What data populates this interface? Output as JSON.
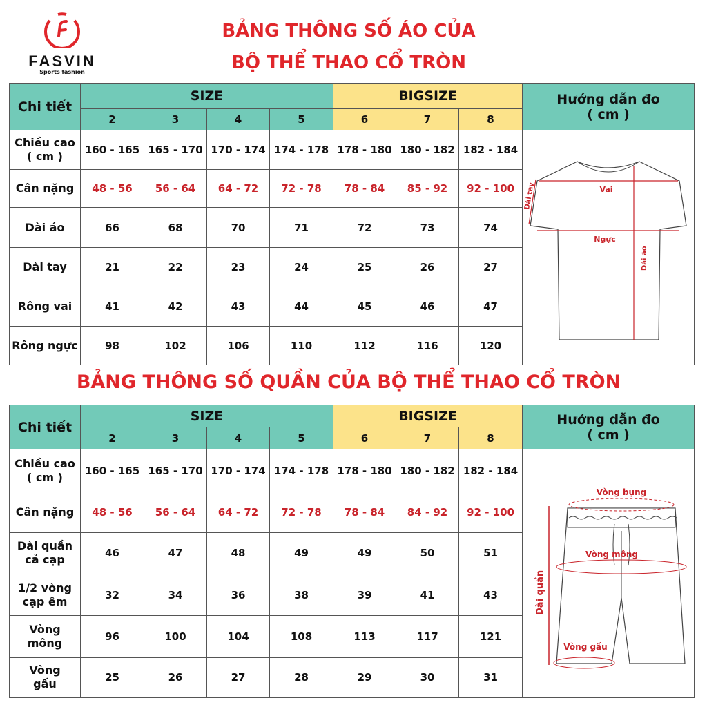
{
  "brand": {
    "name": "FASVIN",
    "tagline": "Sports fashion",
    "color": "#e0262b"
  },
  "shirt_title": [
    "BẢNG THÔNG SỐ ÁO CỦA",
    "BỘ THỂ THAO CỔ TRÒN"
  ],
  "pants_title": "BẢNG THÔNG SỐ QUẦN CỦA BỘ THỂ THAO CỔ TRÒN",
  "colors": {
    "size_header": "#72cab8",
    "bigsize_header": "#fce38a",
    "title": "#e0262b"
  },
  "shirt_table": {
    "detail_header": "Chi tiết",
    "size_header": "SIZE",
    "bigsize_header": "BIGSIZE",
    "guide_header": [
      "Hướng dẫn đo",
      "( cm )"
    ],
    "sizes": [
      "2",
      "3",
      "4",
      "5",
      "6",
      "7",
      "8"
    ],
    "rows": [
      {
        "label": [
          "Chiều cao",
          "( cm )"
        ],
        "values": [
          "160 - 165",
          "165 - 170",
          "170 - 174",
          "174 - 178",
          "178 - 180",
          "180 - 182",
          "182 - 184"
        ]
      },
      {
        "label": [
          "Cân nặng"
        ],
        "values": [
          "48 - 56",
          "56 - 64",
          "64 - 72",
          "72 - 78",
          "78 - 84",
          "85 - 92",
          "92 - 100"
        ]
      },
      {
        "label": [
          "Dài áo"
        ],
        "values": [
          "66",
          "68",
          "70",
          "71",
          "72",
          "73",
          "74"
        ]
      },
      {
        "label": [
          "Dài tay"
        ],
        "values": [
          "21",
          "22",
          "23",
          "24",
          "25",
          "26",
          "27"
        ]
      },
      {
        "label": [
          "Rông vai"
        ],
        "values": [
          "41",
          "42",
          "43",
          "44",
          "45",
          "46",
          "47"
        ]
      },
      {
        "label": [
          "Rông ngực"
        ],
        "values": [
          "98",
          "102",
          "106",
          "110",
          "112",
          "116",
          "120"
        ]
      }
    ],
    "diagram_labels": {
      "shoulder": "Vai",
      "chest": "Ngực",
      "sleeve": "Dài tay",
      "length": "Dài áo"
    }
  },
  "pants_table": {
    "detail_header": "Chi tiết",
    "size_header": "SIZE",
    "bigsize_header": "BIGSIZE",
    "guide_header": [
      "Hướng dẫn đo",
      "( cm )"
    ],
    "sizes": [
      "2",
      "3",
      "4",
      "5",
      "6",
      "7",
      "8"
    ],
    "rows": [
      {
        "label": [
          "Chiều cao",
          "( cm )"
        ],
        "values": [
          "160 - 165",
          "165 - 170",
          "170 - 174",
          "174 - 178",
          "178 - 180",
          "180 - 182",
          "182 - 184"
        ]
      },
      {
        "label": [
          "Cân nặng"
        ],
        "values": [
          "48 - 56",
          "56 - 64",
          "64 - 72",
          "72 - 78",
          "78 - 84",
          "84 - 92",
          "92 - 100"
        ]
      },
      {
        "label": [
          "Dài quần",
          "cả cạp"
        ],
        "values": [
          "46",
          "47",
          "48",
          "49",
          "49",
          "50",
          "51"
        ]
      },
      {
        "label": [
          "1/2 vòng",
          "cạp êm"
        ],
        "values": [
          "32",
          "34",
          "36",
          "38",
          "39",
          "41",
          "43"
        ]
      },
      {
        "label": [
          "Vòng",
          "mông"
        ],
        "values": [
          "96",
          "100",
          "104",
          "108",
          "113",
          "117",
          "121"
        ]
      },
      {
        "label": [
          "Vòng",
          "gấu"
        ],
        "values": [
          "25",
          "26",
          "27",
          "28",
          "29",
          "30",
          "31"
        ]
      }
    ],
    "diagram_labels": {
      "waist": "Vòng bụng",
      "hip": "Vòng mông",
      "hem": "Vòng gấu",
      "length": "Dài quần"
    }
  }
}
